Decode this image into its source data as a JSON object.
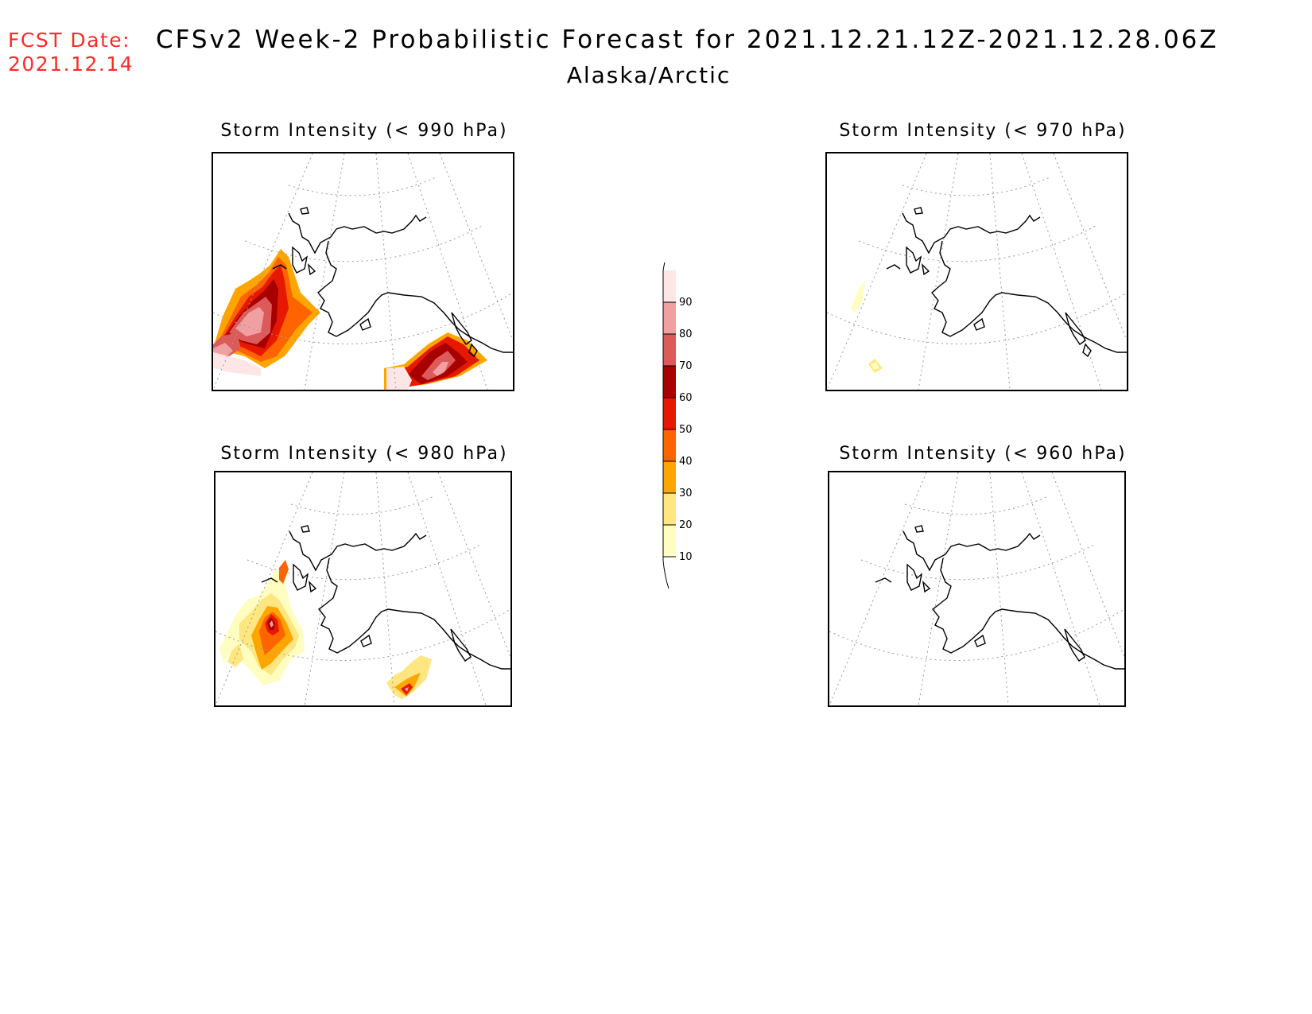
{
  "header": {
    "fcst_label": "FCST Date:",
    "fcst_date": "2021.12.14",
    "title": "CFSv2 Week-2 Probabilistic Forecast for 2021.12.21.12Z-2021.12.28.06Z",
    "region": "Alaska/Arctic"
  },
  "panels": [
    {
      "id": "p990",
      "title": "Storm Intensity (< 990 hPa)"
    },
    {
      "id": "p970",
      "title": "Storm Intensity (< 970 hPa)"
    },
    {
      "id": "p980",
      "title": "Storm Intensity (< 980 hPa)"
    },
    {
      "id": "p960",
      "title": "Storm Intensity (< 960 hPa)"
    }
  ],
  "colorbar": {
    "levels": [
      10,
      20,
      30,
      40,
      50,
      60,
      70,
      80,
      90
    ],
    "colors": [
      "#fffdc0",
      "#ffe680",
      "#ffa500",
      "#ff6400",
      "#e61900",
      "#a80000",
      "#dc5a5a",
      "#f0a0a0",
      "#ffe6e6"
    ]
  }
}
